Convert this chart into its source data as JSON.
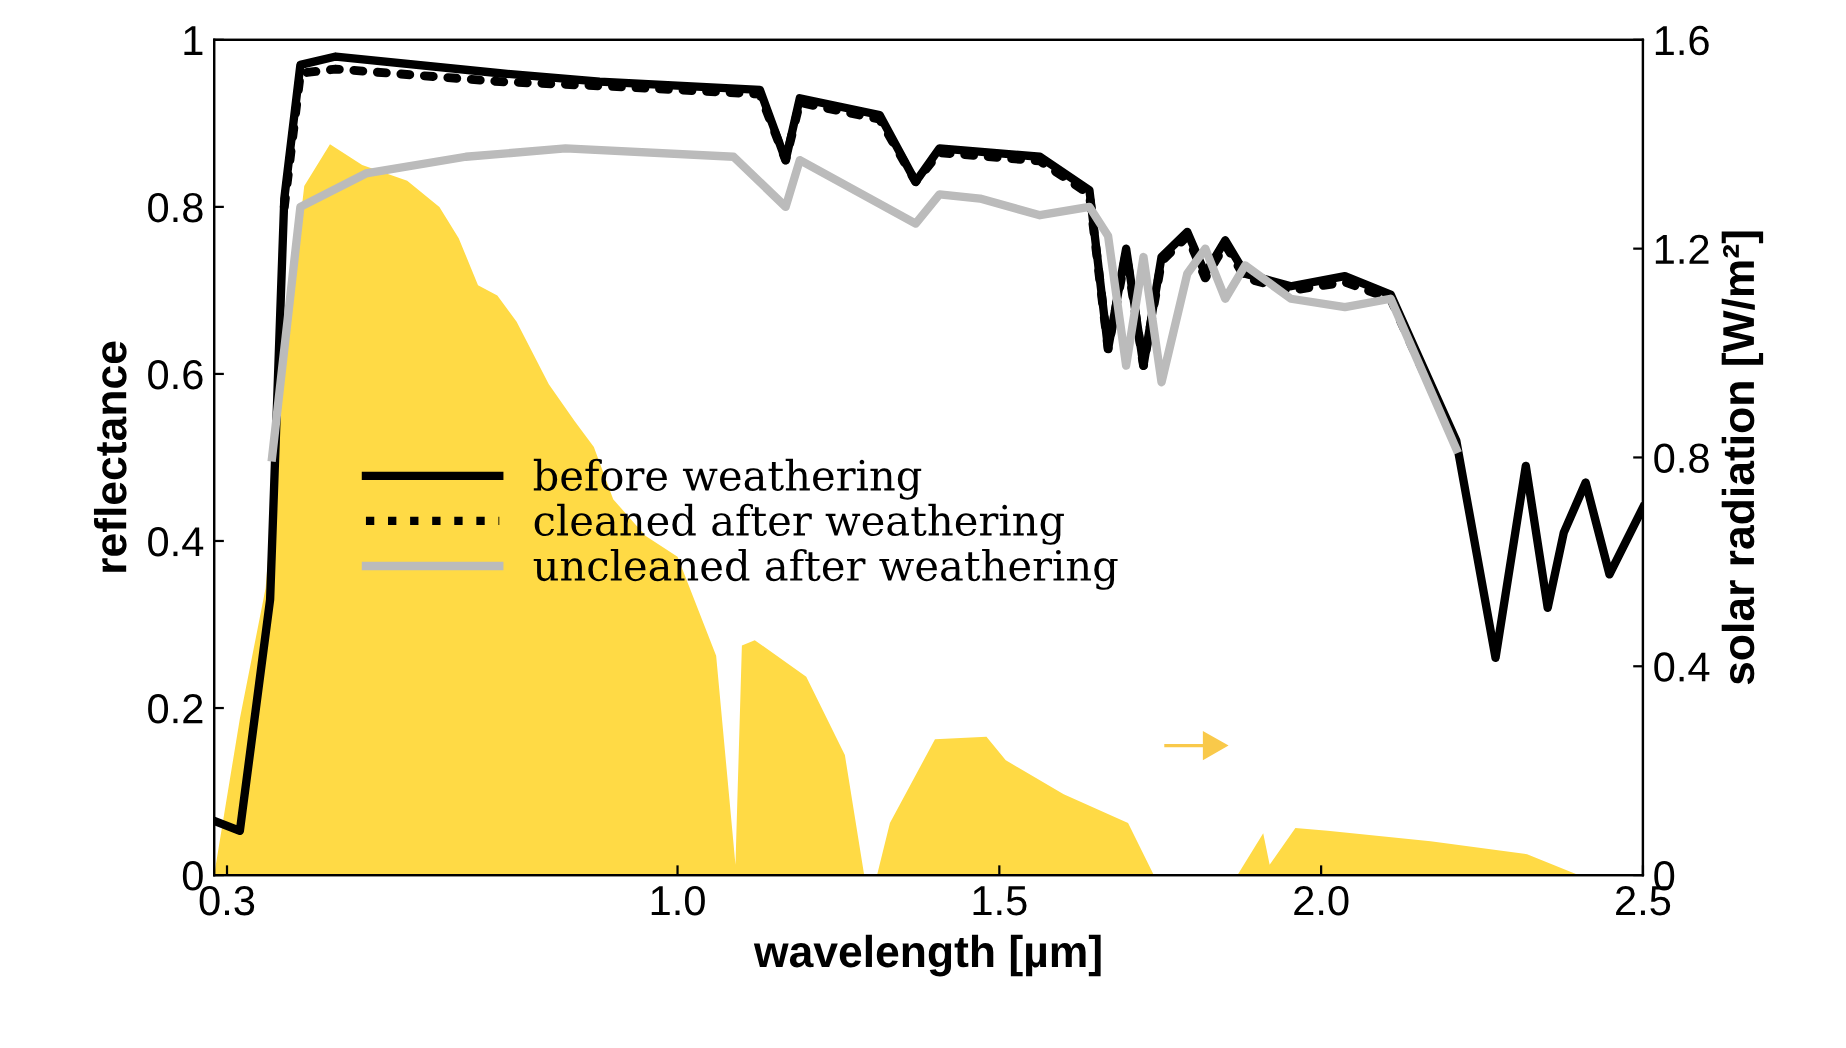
{
  "chart_data": {
    "type": "line",
    "xlabel": "wavelength [µm]",
    "ylabel": "reflectance",
    "y2label": "solar radiation [W/m²]",
    "xlim": [
      0.28,
      2.5
    ],
    "xticks": [
      {
        "value": 0.3,
        "label": "0.3"
      },
      {
        "value": 1.0,
        "label": "1.0"
      },
      {
        "value": 1.5,
        "label": "1.5"
      },
      {
        "value": 2.0,
        "label": "2.0"
      },
      {
        "value": 2.5,
        "label": "2.5"
      }
    ],
    "ylim": [
      0,
      1
    ],
    "yticks": [
      0,
      0.2,
      0.4,
      0.6,
      0.8,
      1
    ],
    "y2lim": [
      0,
      1.6
    ],
    "y2ticks": [
      0,
      0.4,
      0.8,
      1.2,
      1.6
    ],
    "grid": false,
    "legend": "left",
    "series": [
      {
        "type": "area",
        "axis": "y2",
        "color": "#ffda45",
        "x": [
          0.28,
          0.32,
          0.36,
          0.39,
          0.42,
          0.46,
          0.51,
          0.58,
          0.63,
          0.66,
          0.69,
          0.72,
          0.75,
          0.8,
          0.84,
          0.87,
          0.9,
          0.95,
          1.0,
          1.06,
          1.09,
          1.1,
          1.12,
          1.2,
          1.26,
          1.29,
          1.31,
          1.33,
          1.4,
          1.48,
          1.51,
          1.6,
          1.7,
          1.74,
          1.77,
          1.87,
          1.91,
          1.92,
          1.96,
          2.01,
          2.17,
          2.32,
          2.4
        ],
        "values": [
          0,
          0.3,
          0.55,
          1.0,
          1.32,
          1.4,
          1.36,
          1.33,
          1.28,
          1.22,
          1.13,
          1.11,
          1.06,
          0.94,
          0.87,
          0.82,
          0.72,
          0.65,
          0.61,
          0.42,
          0.02,
          0.44,
          0.45,
          0.38,
          0.23,
          0,
          0,
          0.1,
          0.26,
          0.265,
          0.22,
          0.155,
          0.1,
          0,
          0,
          0,
          0.08,
          0.02,
          0.09,
          0.085,
          0.065,
          0.04,
          0
        ]
      },
      {
        "name": "before weathering",
        "line_style": "solid",
        "color": "#000000",
        "x": [
          0.28,
          0.32,
          0.367,
          0.389,
          0.414,
          0.469,
          0.724,
          0.879,
          1.128,
          1.168,
          1.19,
          1.314,
          1.37,
          1.407,
          1.563,
          1.64,
          1.669,
          1.697,
          1.724,
          1.752,
          1.792,
          1.82,
          1.851,
          1.882,
          1.953,
          2.037,
          2.108,
          2.21,
          2.271,
          2.318,
          2.352,
          2.377,
          2.411,
          2.448,
          2.5
        ],
        "values": [
          0.065,
          0.053,
          0.33,
          0.81,
          0.97,
          0.98,
          0.96,
          0.95,
          0.94,
          0.856,
          0.93,
          0.91,
          0.83,
          0.87,
          0.86,
          0.82,
          0.63,
          0.75,
          0.61,
          0.74,
          0.77,
          0.72,
          0.76,
          0.72,
          0.705,
          0.717,
          0.695,
          0.52,
          0.26,
          0.49,
          0.32,
          0.41,
          0.47,
          0.36,
          0.44
        ]
      },
      {
        "name": "cleaned after weathering",
        "line_style": "dotted",
        "color": "#000000",
        "x": [
          0.389,
          0.414,
          0.469,
          0.724,
          0.879,
          1.128,
          1.168,
          1.19,
          1.314,
          1.37,
          1.407,
          1.563,
          1.64,
          1.669,
          1.697,
          1.724,
          1.752,
          1.792,
          1.82,
          1.851,
          1.882,
          1.953,
          2.037,
          2.108,
          2.21
        ],
        "values": [
          0.8,
          0.96,
          0.965,
          0.95,
          0.945,
          0.935,
          0.856,
          0.925,
          0.905,
          0.83,
          0.865,
          0.855,
          0.815,
          0.63,
          0.745,
          0.61,
          0.735,
          0.765,
          0.715,
          0.755,
          0.715,
          0.7,
          0.71,
          0.69,
          0.515
        ]
      },
      {
        "name": "uncleaned after weathering",
        "line_style": "solid",
        "color": "#bbbbbb",
        "x": [
          0.37,
          0.414,
          0.516,
          0.671,
          0.826,
          1.087,
          1.168,
          1.19,
          1.37,
          1.407,
          1.47,
          1.563,
          1.64,
          1.669,
          1.697,
          1.724,
          1.752,
          1.792,
          1.82,
          1.851,
          1.882,
          1.953,
          2.037,
          2.108,
          2.21
        ],
        "values": [
          0.5,
          0.8,
          0.84,
          0.86,
          0.87,
          0.86,
          0.8,
          0.856,
          0.78,
          0.815,
          0.81,
          0.79,
          0.8,
          0.765,
          0.61,
          0.74,
          0.59,
          0.72,
          0.75,
          0.69,
          0.73,
          0.69,
          0.68,
          0.69,
          0.51
        ]
      }
    ]
  }
}
